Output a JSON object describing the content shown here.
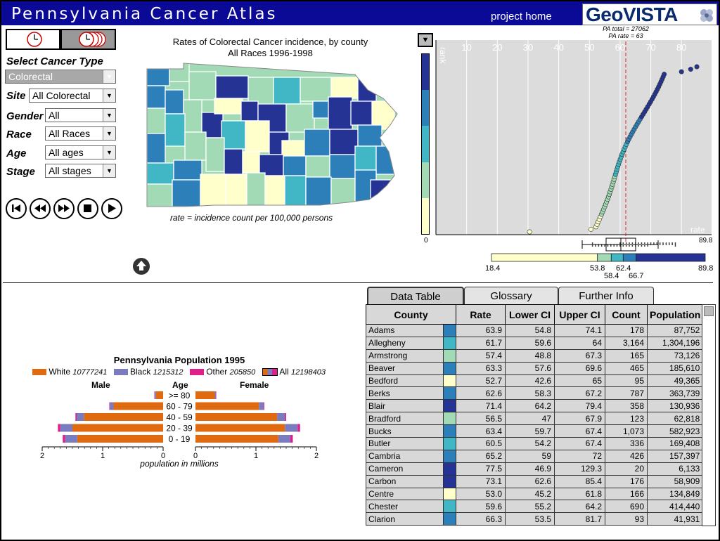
{
  "header": {
    "title": "Pennsylvania Cancer Atlas",
    "home_link": "project home",
    "logo": "GeoVISTA"
  },
  "controls": {
    "cancer_type_label": "Select Cancer Type",
    "cancer_type_value": "Colorectal",
    "site_label": "Site",
    "site_value": "All Colorectal",
    "gender_label": "Gender",
    "gender_value": "All",
    "race_label": "Race",
    "race_value": "All Races",
    "age_label": "Age",
    "age_value": "All ages",
    "stage_label": "Stage",
    "stage_value": "All stages"
  },
  "map": {
    "title_line1": "Rates of  Colorectal Cancer incidence, by county",
    "title_line2": "All Races 1996-1998",
    "caption": "rate = incidence count per 100,000 persons"
  },
  "colors": {
    "c1": "#ffffcc",
    "c2": "#a1dab4",
    "c3": "#41b6c4",
    "c4": "#2c7fb8",
    "c5": "#253494",
    "bar_white": "#e06a10",
    "bar_black": "#7b7bc0",
    "bar_other": "#e0208a"
  },
  "rankplot": {
    "pa_total": "PA total = 27062",
    "pa_rate": "PA rate = 63",
    "x_ticks": [
      "10",
      "20",
      "30",
      "40",
      "50",
      "60",
      "70",
      "80"
    ],
    "y_label": "rank",
    "x_label": "rate",
    "zero": "0",
    "max": "89.8",
    "legend_labels": [
      "18.4",
      "53.8",
      "62.4",
      "89.8",
      "58.4",
      "66.7"
    ],
    "legend_breaks": [
      18.4,
      53.8,
      58.4,
      62.4,
      66.7,
      89.8
    ]
  },
  "pyramid": {
    "title": "Pennsylvania Population 1995",
    "legend": [
      {
        "name": "White",
        "value": "10777241"
      },
      {
        "name": "Black",
        "value": "1215312"
      },
      {
        "name": "Other",
        "value": "205850"
      },
      {
        "name": "All",
        "value": "12198403"
      }
    ],
    "male_label": "Male",
    "age_label": "Age",
    "female_label": "Female",
    "age_groups": [
      ">= 80",
      "60 - 79",
      "40 - 59",
      "20 - 39",
      "0 - 19"
    ],
    "axis_ticks": [
      "2",
      "1",
      "0",
      "0",
      "1",
      "2"
    ],
    "axis_label": "population in millions"
  },
  "tabs": [
    "Data Table",
    "Glossary",
    "Further Info"
  ],
  "table": {
    "headers": [
      "County",
      "Rate",
      "Lower CI",
      "Upper CI",
      "Count",
      "Population"
    ],
    "rows": [
      {
        "county": "Adams",
        "color": "#2c7fb8",
        "rate": "63.9",
        "lci": "54.8",
        "uci": "74.1",
        "count": "178",
        "pop": "87,752"
      },
      {
        "county": "Allegheny",
        "color": "#41b6c4",
        "rate": "61.7",
        "lci": "59.6",
        "uci": "64",
        "count": "3,164",
        "pop": "1,304,196"
      },
      {
        "county": "Armstrong",
        "color": "#a1dab4",
        "rate": "57.4",
        "lci": "48.8",
        "uci": "67.3",
        "count": "165",
        "pop": "73,126"
      },
      {
        "county": "Beaver",
        "color": "#2c7fb8",
        "rate": "63.3",
        "lci": "57.6",
        "uci": "69.6",
        "count": "465",
        "pop": "185,610"
      },
      {
        "county": "Bedford",
        "color": "#ffffcc",
        "rate": "52.7",
        "lci": "42.6",
        "uci": "65",
        "count": "95",
        "pop": "49,365"
      },
      {
        "county": "Berks",
        "color": "#2c7fb8",
        "rate": "62.6",
        "lci": "58.3",
        "uci": "67.2",
        "count": "787",
        "pop": "363,739"
      },
      {
        "county": "Blair",
        "color": "#253494",
        "rate": "71.4",
        "lci": "64.2",
        "uci": "79.4",
        "count": "358",
        "pop": "130,936"
      },
      {
        "county": "Bradford",
        "color": "#a1dab4",
        "rate": "56.5",
        "lci": "47",
        "uci": "67.9",
        "count": "123",
        "pop": "62,818"
      },
      {
        "county": "Bucks",
        "color": "#2c7fb8",
        "rate": "63.4",
        "lci": "59.7",
        "uci": "67.4",
        "count": "1,073",
        "pop": "582,923"
      },
      {
        "county": "Butler",
        "color": "#41b6c4",
        "rate": "60.5",
        "lci": "54.2",
        "uci": "67.4",
        "count": "336",
        "pop": "169,408"
      },
      {
        "county": "Cambria",
        "color": "#2c7fb8",
        "rate": "65.2",
        "lci": "59",
        "uci": "72",
        "count": "426",
        "pop": "157,397"
      },
      {
        "county": "Cameron",
        "color": "#253494",
        "rate": "77.5",
        "lci": "46.9",
        "uci": "129.3",
        "count": "20",
        "pop": "6,133"
      },
      {
        "county": "Carbon",
        "color": "#253494",
        "rate": "73.1",
        "lci": "62.6",
        "uci": "85.4",
        "count": "176",
        "pop": "58,909"
      },
      {
        "county": "Centre",
        "color": "#ffffcc",
        "rate": "53.0",
        "lci": "45.2",
        "uci": "61.8",
        "count": "166",
        "pop": "134,849"
      },
      {
        "county": "Chester",
        "color": "#41b6c4",
        "rate": "59.6",
        "lci": "55.2",
        "uci": "64.2",
        "count": "690",
        "pop": "414,440"
      },
      {
        "county": "Clarion",
        "color": "#2c7fb8",
        "rate": "66.3",
        "lci": "53.5",
        "uci": "81.7",
        "count": "93",
        "pop": "41,931"
      }
    ]
  }
}
